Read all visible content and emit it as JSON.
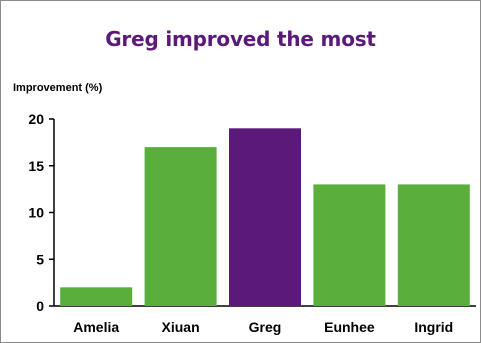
{
  "chart_data": {
    "type": "bar",
    "title": "Greg improved the most",
    "ylabel": "Improvement (%)",
    "xlabel": "",
    "categories": [
      "Amelia",
      "Xiuan",
      "Greg",
      "Eunhee",
      "Ingrid"
    ],
    "values": [
      2,
      17,
      19,
      13,
      13
    ],
    "ylim": [
      0,
      20
    ],
    "yticks": [
      0,
      5,
      10,
      15,
      20
    ],
    "bar_colors": [
      "#5aaf3c",
      "#5aaf3c",
      "#5b1a7a",
      "#5aaf3c",
      "#5aaf3c"
    ],
    "highlight_color": "#5b1a7a",
    "default_color": "#5aaf3c",
    "title_color": "#5b1a7a",
    "grid": false,
    "legend": "none"
  }
}
